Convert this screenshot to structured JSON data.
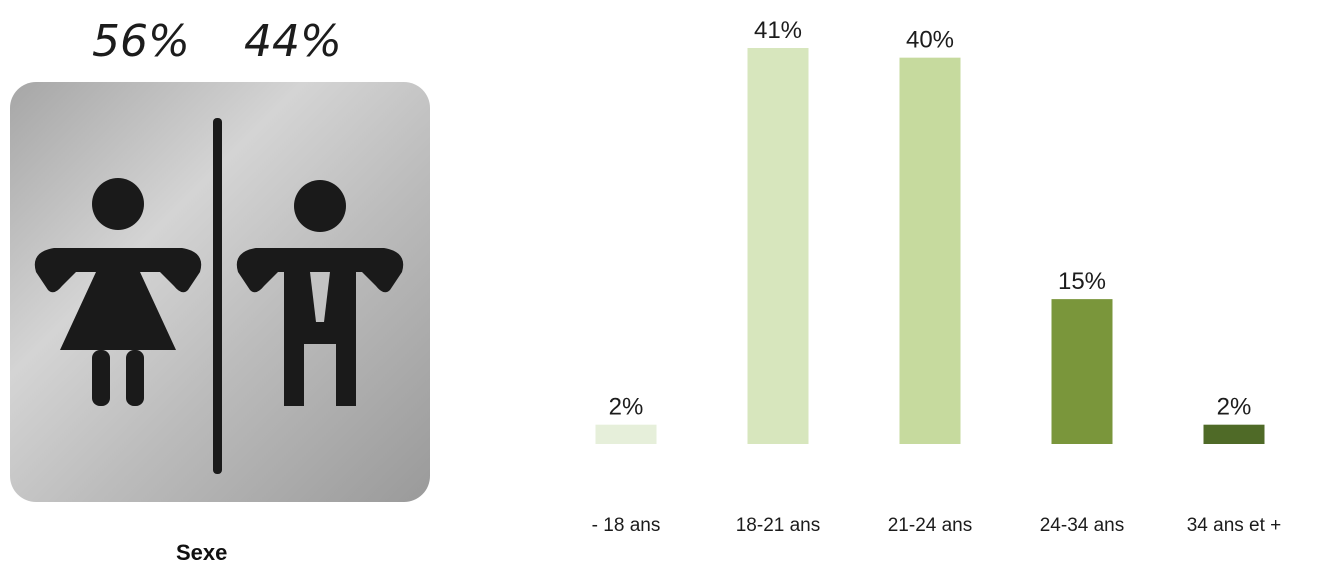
{
  "sex": {
    "female_pct": "56%",
    "male_pct": "44%",
    "label": "Sexe",
    "icon": "restroom-sign-icon"
  },
  "chart_data": {
    "type": "bar",
    "categories": [
      "- 18 ans",
      "18-21 ans",
      "21-24 ans",
      "24-34 ans",
      "34 ans et +"
    ],
    "values": [
      2,
      41,
      40,
      15,
      2
    ],
    "value_labels": [
      "2%",
      "41%",
      "40%",
      "15%",
      "2%"
    ],
    "colors": [
      "#e6efda",
      "#d7e6bd",
      "#c6da9e",
      "#7a963b",
      "#4f6a27"
    ],
    "title": "",
    "xlabel": "",
    "ylabel": "",
    "ylim": [
      0,
      41
    ],
    "grid": false,
    "legend": "none"
  }
}
